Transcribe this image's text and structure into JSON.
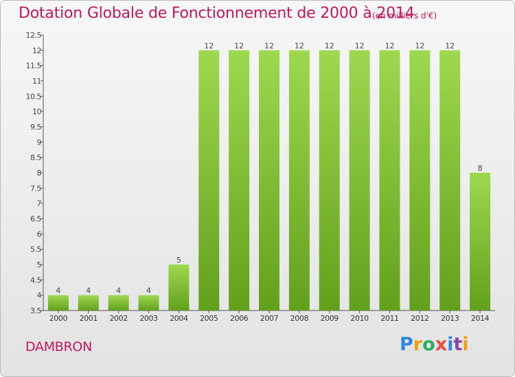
{
  "title": "Dotation Globale de Fonctionnement de 2000 à 2014",
  "subtitle": "(en milliers d'€)",
  "place": "DAMBRON",
  "logo": {
    "text": "Proxiti",
    "letters": [
      "P",
      "r",
      "o",
      "x",
      "i",
      "t",
      "i"
    ]
  },
  "colors": {
    "bar_light": "#9ed84e",
    "bar_dark": "#62a01c",
    "title": "#c2185b",
    "axis": "#555555"
  },
  "chart_data": {
    "type": "bar",
    "categories": [
      "2000",
      "2001",
      "2002",
      "2003",
      "2004",
      "2005",
      "2006",
      "2007",
      "2008",
      "2009",
      "2010",
      "2011",
      "2012",
      "2013",
      "2014"
    ],
    "values": [
      4,
      4,
      4,
      4,
      5,
      12,
      12,
      12,
      12,
      12,
      12,
      12,
      12,
      12,
      8
    ],
    "value_labels": [
      "4",
      "4",
      "4",
      "4",
      "5",
      "12",
      "12",
      "12",
      "12",
      "12",
      "12",
      "12",
      "12",
      "12",
      "8"
    ],
    "ylim": [
      3.5,
      12.5
    ],
    "yticks": [
      3.5,
      4,
      4.5,
      5,
      5.5,
      6,
      6.5,
      7,
      7.5,
      8,
      8.5,
      9,
      9.5,
      10,
      10.5,
      11,
      11.5,
      12,
      12.5
    ],
    "ytick_labels": [
      "3.5",
      "4",
      "4.5",
      "5",
      "5.5",
      "6",
      "6.5",
      "7",
      "7.5",
      "8",
      "8.5",
      "9",
      "9.5",
      "10",
      "10.5",
      "11",
      "11.5",
      "12",
      "12.5"
    ],
    "grid": false,
    "legend": "none"
  }
}
